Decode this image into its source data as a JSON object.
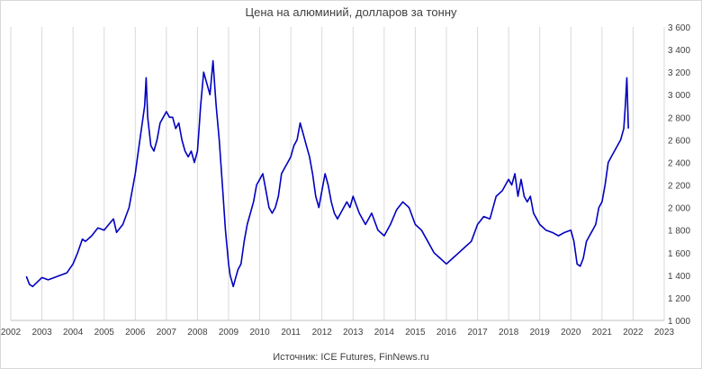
{
  "chart_data": {
    "type": "line",
    "title": "Цена на алюминий, долларов за тонну",
    "source": "Источник: ICE Futures, FinNews.ru",
    "xlabel": "",
    "ylabel": "",
    "xlim": [
      2002,
      2023
    ],
    "ylim": [
      1000,
      3600
    ],
    "y_ticks": [
      1000,
      1200,
      1400,
      1600,
      1800,
      2000,
      2200,
      2400,
      2600,
      2800,
      3000,
      3200,
      3400,
      3600
    ],
    "y_tick_labels": [
      "1 000",
      "1 200",
      "1 400",
      "1 600",
      "1 800",
      "2 000",
      "2 200",
      "2 400",
      "2 600",
      "2 800",
      "3 000",
      "3 200",
      "3 400",
      "3 600"
    ],
    "x_ticks": [
      2002,
      2003,
      2004,
      2005,
      2006,
      2007,
      2008,
      2009,
      2010,
      2011,
      2012,
      2013,
      2014,
      2015,
      2016,
      2017,
      2018,
      2019,
      2020,
      2021,
      2022,
      2023
    ],
    "x_tick_labels": [
      "2002",
      "2003",
      "2004",
      "2005",
      "2006",
      "2007",
      "2008",
      "2009",
      "2010",
      "2011",
      "2012",
      "2013",
      "2014",
      "2015",
      "2016",
      "2017",
      "2018",
      "2019",
      "2020",
      "2021",
      "2022",
      "2023"
    ],
    "grid": "vertical",
    "y_axis_side": "right",
    "line_color": "#0000c0",
    "series": [
      {
        "x": [
          2002.5,
          2002.6,
          2002.7,
          2002.85,
          2003.0,
          2003.2,
          2003.4,
          2003.6,
          2003.8,
          2004.0,
          2004.15,
          2004.3,
          2004.4,
          2004.6,
          2004.8,
          2005.0,
          2005.15,
          2005.3,
          2005.4,
          2005.6,
          2005.8,
          2006.0,
          2006.1,
          2006.2,
          2006.3,
          2006.35,
          2006.4,
          2006.5,
          2006.6,
          2006.7,
          2006.8,
          2006.9,
          2007.0,
          2007.1,
          2007.2,
          2007.3,
          2007.4,
          2007.5,
          2007.6,
          2007.7,
          2007.8,
          2007.9,
          2008.0,
          2008.05,
          2008.1,
          2008.2,
          2008.3,
          2008.4,
          2008.5,
          2008.55,
          2008.6,
          2008.7,
          2008.8,
          2008.9,
          2009.0,
          2009.05,
          2009.1,
          2009.15,
          2009.2,
          2009.3,
          2009.4,
          2009.5,
          2009.6,
          2009.7,
          2009.8,
          2009.9,
          2010.0,
          2010.1,
          2010.2,
          2010.3,
          2010.4,
          2010.5,
          2010.6,
          2010.7,
          2010.8,
          2010.9,
          2011.0,
          2011.1,
          2011.2,
          2011.3,
          2011.4,
          2011.5,
          2011.6,
          2011.7,
          2011.8,
          2011.9,
          2012.0,
          2012.1,
          2012.2,
          2012.3,
          2012.4,
          2012.5,
          2012.6,
          2012.7,
          2012.8,
          2012.9,
          2013.0,
          2013.2,
          2013.4,
          2013.6,
          2013.8,
          2014.0,
          2014.2,
          2014.4,
          2014.6,
          2014.8,
          2015.0,
          2015.2,
          2015.4,
          2015.6,
          2015.8,
          2016.0,
          2016.2,
          2016.4,
          2016.6,
          2016.8,
          2017.0,
          2017.2,
          2017.4,
          2017.6,
          2017.8,
          2018.0,
          2018.1,
          2018.2,
          2018.3,
          2018.4,
          2018.5,
          2018.6,
          2018.7,
          2018.8,
          2018.9,
          2019.0,
          2019.2,
          2019.4,
          2019.6,
          2019.8,
          2020.0,
          2020.1,
          2020.2,
          2020.3,
          2020.4,
          2020.5,
          2020.6,
          2020.7,
          2020.8,
          2020.9,
          2021.0,
          2021.1,
          2021.2,
          2021.3,
          2021.4,
          2021.5,
          2021.6,
          2021.7,
          2021.75,
          2021.8,
          2021.85
        ],
        "y": [
          1390,
          1320,
          1300,
          1340,
          1380,
          1360,
          1380,
          1400,
          1420,
          1500,
          1600,
          1720,
          1700,
          1750,
          1820,
          1800,
          1850,
          1900,
          1780,
          1850,
          2000,
          2300,
          2500,
          2700,
          2900,
          3150,
          2800,
          2550,
          2500,
          2600,
          2750,
          2800,
          2850,
          2800,
          2800,
          2700,
          2750,
          2600,
          2500,
          2450,
          2500,
          2400,
          2500,
          2700,
          2900,
          3200,
          3100,
          3000,
          3300,
          3100,
          2900,
          2600,
          2200,
          1800,
          1500,
          1400,
          1350,
          1300,
          1350,
          1450,
          1500,
          1700,
          1850,
          1950,
          2050,
          2200,
          2250,
          2300,
          2150,
          2000,
          1950,
          2000,
          2100,
          2300,
          2350,
          2400,
          2450,
          2550,
          2600,
          2750,
          2650,
          2550,
          2450,
          2300,
          2100,
          2000,
          2150,
          2300,
          2200,
          2050,
          1950,
          1900,
          1950,
          2000,
          2050,
          2000,
          2100,
          1950,
          1850,
          1950,
          1800,
          1750,
          1850,
          1980,
          2050,
          2000,
          1850,
          1800,
          1700,
          1600,
          1550,
          1500,
          1550,
          1600,
          1650,
          1700,
          1850,
          1920,
          1900,
          2100,
          2150,
          2250,
          2200,
          2300,
          2100,
          2250,
          2100,
          2050,
          2100,
          1950,
          1900,
          1850,
          1800,
          1780,
          1750,
          1780,
          1800,
          1700,
          1500,
          1480,
          1550,
          1700,
          1750,
          1800,
          1850,
          2000,
          2050,
          2200,
          2400,
          2450,
          2500,
          2550,
          2600,
          2700,
          2900,
          3150,
          2700
        ]
      }
    ]
  }
}
